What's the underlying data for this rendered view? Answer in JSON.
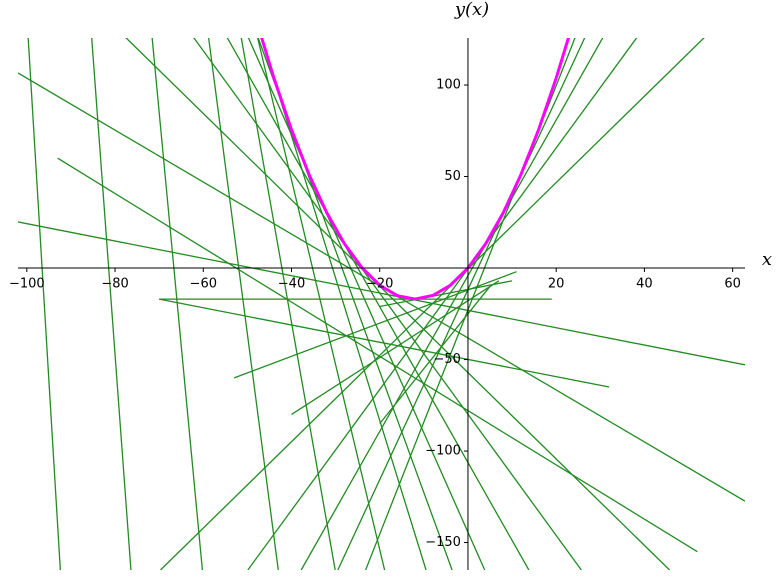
{
  "chart_data": {
    "type": "line",
    "x_label": "x",
    "y_label": "y(x)",
    "xlim": [
      -102,
      62.8
    ],
    "ylim": [
      -165,
      125.7
    ],
    "xticks": [
      {
        "value": -100,
        "label": "−100"
      },
      {
        "value": -80,
        "label": "−80"
      },
      {
        "value": -60,
        "label": "−60"
      },
      {
        "value": -40,
        "label": "−40"
      },
      {
        "value": -20,
        "label": "−20"
      },
      20,
      40,
      60
    ],
    "yticks": [
      {
        "value": -150,
        "label": "−150"
      },
      {
        "value": -100,
        "label": "−100"
      },
      {
        "value": -50,
        "label": "−50"
      },
      50,
      100
    ],
    "series": [
      {
        "color": "#ff00ff",
        "x": [
          -47,
          -44,
          -40,
          -36,
          -32,
          -28,
          -24,
          -20,
          -16,
          -12,
          -8,
          -4,
          0,
          4,
          8,
          12,
          16,
          20,
          23
        ],
        "values": [
          127.7,
          103.9,
          75.6,
          51.0,
          30.2,
          13.3,
          0.1,
          -9.4,
          -15.1,
          -17.0,
          -15.0,
          -9.4,
          0,
          13.2,
          30.2,
          51.0,
          75.5,
          103.8,
          127.5
        ]
      },
      {
        "color": "#228b22",
        "x": [
          -99.7,
          -92.4
        ],
        "values": [
          126,
          -165
        ]
      },
      {
        "color": "#228b22",
        "x": [
          -85.3,
          -76.4
        ],
        "values": [
          126,
          -165
        ]
      },
      {
        "color": "#228b22",
        "x": [
          -71.6,
          -60.2
        ],
        "values": [
          126,
          -165
        ]
      },
      {
        "color": "#228b22",
        "x": [
          -58.8,
          -43
        ],
        "values": [
          126,
          -165
        ]
      },
      {
        "color": "#228b22",
        "x": [
          -51.4,
          -30.1
        ],
        "values": [
          126,
          -165
        ]
      },
      {
        "color": "#228b22",
        "x": [
          -47.7,
          -18.9
        ],
        "values": [
          126,
          -165
        ]
      },
      {
        "color": "#228b22",
        "x": [
          -46.9,
          -9.5
        ],
        "values": [
          126,
          -165
        ]
      },
      {
        "color": "#228b22",
        "x": [
          -47.6,
          -3.6
        ],
        "values": [
          126,
          -165
        ]
      },
      {
        "color": "#228b22",
        "x": [
          -49.8,
          3.8
        ],
        "values": [
          126,
          -165
        ]
      },
      {
        "color": "#228b22",
        "x": [
          -54.6,
          13.8
        ],
        "values": [
          126,
          -165
        ]
      },
      {
        "color": "#228b22",
        "x": [
          -62.2,
          25.7
        ],
        "values": [
          126,
          -165
        ]
      },
      {
        "color": "#228b22",
        "x": [
          -77.6,
          45.7
        ],
        "values": [
          126,
          -165
        ]
      },
      {
        "color": "#228b22",
        "x": [
          -102,
          62.8
        ],
        "values": [
          106.6,
          -127.4
        ]
      },
      {
        "color": "#228b22",
        "x": [
          -102,
          62.8
        ],
        "values": [
          25.2,
          -52.9
        ]
      },
      {
        "color": "#228b22",
        "x": [
          -20,
          10
        ],
        "values": [
          -21,
          -7
        ]
      },
      {
        "color": "#228b22",
        "x": [
          -69.7,
          53.6
        ],
        "values": [
          -165,
          126
        ]
      },
      {
        "color": "#228b22",
        "x": [
          -49.9,
          38.3
        ],
        "values": [
          -165,
          126
        ]
      },
      {
        "color": "#228b22",
        "x": [
          -37.8,
          30.6
        ],
        "values": [
          -165,
          126
        ]
      },
      {
        "color": "#228b22",
        "x": [
          -29.5,
          26.5
        ],
        "values": [
          -165,
          126
        ]
      },
      {
        "color": "#228b22",
        "x": [
          -23.2,
          24.3
        ],
        "values": [
          -165,
          126
        ]
      },
      {
        "color": "#228b22",
        "x": [
          -70,
          19
        ],
        "values": [
          -17,
          -17
        ]
      },
      {
        "color": "#228b22",
        "x": [
          -70,
          32
        ],
        "values": [
          -17,
          -65
        ]
      },
      {
        "color": "#228b22",
        "x": [
          -93,
          52
        ],
        "values": [
          60,
          -155
        ]
      },
      {
        "color": "#228b22",
        "x": [
          -53,
          11
        ],
        "values": [
          -60,
          -2
        ]
      },
      {
        "color": "#228b22",
        "x": [
          -40,
          7
        ],
        "values": [
          -80,
          -7
        ]
      },
      {
        "color": "#228b22",
        "x": [
          -20,
          5
        ],
        "values": [
          -85,
          -10
        ]
      }
    ]
  }
}
